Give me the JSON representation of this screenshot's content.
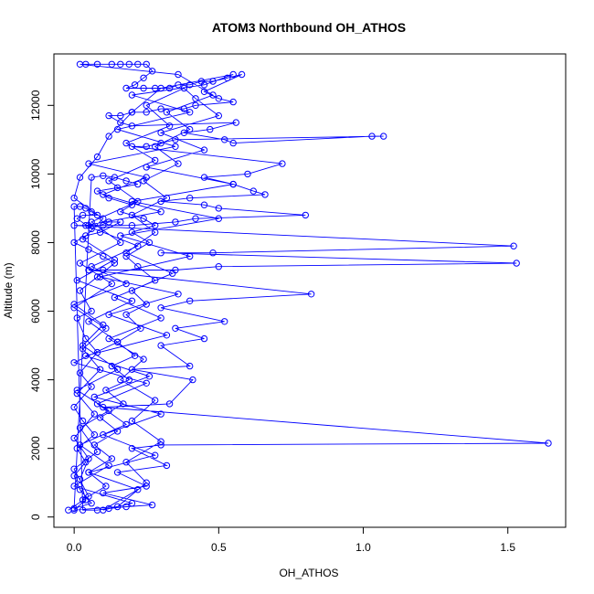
{
  "chart_data": {
    "type": "scatter",
    "title": "ATOM3 Northbound OH_ATHOS",
    "xlabel": "OH_ATHOS",
    "ylabel": "Altitude (m)",
    "xlim": [
      -0.07,
      1.7
    ],
    "ylim": [
      -300,
      13500
    ],
    "xticks": [
      0.0,
      0.5,
      1.0,
      1.5
    ],
    "xtick_labels": [
      "0.0",
      "0.5",
      "1.0",
      "1.5"
    ],
    "yticks": [
      0,
      2000,
      4000,
      6000,
      8000,
      10000,
      12000
    ],
    "ytick_labels": [
      "0",
      "2000",
      "4000",
      "6000",
      "8000",
      "10000",
      "12000"
    ],
    "grid": false,
    "connected": true,
    "marker": "open-circle",
    "colors": {
      "series": "#0000ff",
      "axes": "#000000",
      "background": "#ffffff"
    },
    "series": [
      {
        "points": [
          [
            -0.02,
            200
          ],
          [
            0.05,
            600
          ],
          [
            0.0,
            1400
          ],
          [
            0.08,
            1900
          ],
          [
            0.02,
            2600
          ],
          [
            0.12,
            3100
          ],
          [
            0.01,
            3700
          ],
          [
            0.15,
            4300
          ],
          [
            0.03,
            5000
          ],
          [
            0.1,
            5600
          ],
          [
            0.0,
            6200
          ],
          [
            0.18,
            6800
          ],
          [
            0.06,
            7300
          ],
          [
            0.22,
            7900
          ],
          [
            0.04,
            8500
          ],
          [
            0.3,
            8900
          ],
          [
            0.1,
            9400
          ],
          [
            0.25,
            9900
          ],
          [
            0.05,
            10300
          ],
          [
            0.35,
            10800
          ],
          [
            0.15,
            11300
          ],
          [
            0.4,
            11800
          ],
          [
            0.2,
            12300
          ],
          [
            0.45,
            12600
          ],
          [
            0.55,
            12900
          ],
          [
            0.3,
            12500
          ],
          [
            0.2,
            11800
          ],
          [
            0.12,
            11100
          ],
          [
            0.08,
            10500
          ],
          [
            0.02,
            9900
          ],
          [
            0.0,
            9300
          ],
          [
            0.1,
            8700
          ],
          [
            0.03,
            8100
          ],
          [
            0.14,
            7500
          ],
          [
            0.01,
            6900
          ],
          [
            0.2,
            6300
          ],
          [
            0.05,
            5700
          ],
          [
            0.15,
            5100
          ],
          [
            0.0,
            4500
          ],
          [
            0.25,
            3900
          ],
          [
            0.08,
            3300
          ],
          [
            0.18,
            2700
          ],
          [
            0.02,
            2100
          ],
          [
            0.12,
            1500
          ],
          [
            0.0,
            900
          ],
          [
            0.2,
            400
          ],
          [
            0.1,
            200
          ],
          [
            0.22,
            800
          ],
          [
            0.05,
            1300
          ],
          [
            0.28,
            1800
          ],
          [
            0.1,
            2400
          ],
          [
            0.3,
            3000
          ],
          [
            0.07,
            3500
          ],
          [
            0.26,
            4100
          ],
          [
            0.04,
            4700
          ],
          [
            0.32,
            5300
          ],
          [
            0.12,
            5900
          ],
          [
            0.36,
            6500
          ],
          [
            0.09,
            7000
          ],
          [
            0.4,
            7600
          ],
          [
            0.16,
            8200
          ],
          [
            0.5,
            8700
          ],
          [
            0.2,
            9200
          ],
          [
            0.55,
            9700
          ],
          [
            0.25,
            10200
          ],
          [
            0.45,
            10700
          ],
          [
            0.3,
            11200
          ],
          [
            0.5,
            11700
          ],
          [
            0.42,
            12200
          ],
          [
            0.38,
            12500
          ],
          [
            0.25,
            12000
          ],
          [
            0.33,
            11400
          ],
          [
            0.18,
            10900
          ],
          [
            0.28,
            10400
          ],
          [
            0.12,
            9800
          ],
          [
            0.22,
            9200
          ],
          [
            0.06,
            8600
          ],
          [
            0.16,
            8000
          ],
          [
            0.02,
            7400
          ],
          [
            0.13,
            6800
          ],
          [
            0.0,
            6100
          ],
          [
            0.11,
            5500
          ],
          [
            0.03,
            4900
          ],
          [
            0.09,
            4300
          ],
          [
            0.01,
            3600
          ],
          [
            0.07,
            3000
          ],
          [
            0.0,
            2300
          ],
          [
            0.05,
            1700
          ],
          [
            0.02,
            1100
          ],
          [
            0.04,
            500
          ],
          [
            0.0,
            200
          ],
          [
            0.15,
            300
          ],
          [
            0.25,
            1000
          ],
          [
            0.18,
            1600
          ],
          [
            0.3,
            2200
          ],
          [
            0.2,
            2800
          ],
          [
            0.28,
            3400
          ],
          [
            0.16,
            4000
          ],
          [
            0.24,
            4600
          ],
          [
            0.12,
            5200
          ],
          [
            0.3,
            5800
          ],
          [
            0.14,
            6400
          ],
          [
            0.34,
            7100
          ],
          [
            0.18,
            7700
          ],
          [
            0.28,
            8300
          ],
          [
            0.2,
            8800
          ],
          [
            0.32,
            9300
          ],
          [
            0.24,
            9800
          ],
          [
            0.36,
            10300
          ],
          [
            0.28,
            10800
          ],
          [
            0.4,
            11300
          ],
          [
            0.32,
            11800
          ],
          [
            0.48,
            12300
          ],
          [
            0.36,
            12900
          ],
          [
            0.02,
            13200
          ],
          [
            0.04,
            13200
          ],
          [
            0.08,
            13200
          ],
          [
            0.13,
            13200
          ],
          [
            0.16,
            13200
          ],
          [
            0.19,
            13200
          ],
          [
            0.22,
            13200
          ],
          [
            0.25,
            13200
          ],
          [
            0.27,
            13000
          ],
          [
            0.24,
            12800
          ],
          [
            0.21,
            12600
          ],
          [
            0.18,
            12500
          ],
          [
            0.24,
            12500
          ],
          [
            0.28,
            12500
          ],
          [
            0.33,
            12500
          ],
          [
            0.36,
            12600
          ],
          [
            0.4,
            12600
          ],
          [
            0.44,
            12700
          ],
          [
            0.48,
            12700
          ],
          [
            0.53,
            12800
          ],
          [
            0.58,
            12900
          ],
          [
            0.45,
            12400
          ],
          [
            0.5,
            12200
          ],
          [
            0.55,
            12100
          ],
          [
            0.42,
            12000
          ],
          [
            0.38,
            11900
          ],
          [
            0.3,
            11900
          ],
          [
            0.25,
            11800
          ],
          [
            0.2,
            11800
          ],
          [
            0.16,
            11700
          ],
          [
            0.12,
            11700
          ],
          [
            0.16,
            11500
          ],
          [
            0.2,
            11400
          ],
          [
            0.56,
            11500
          ],
          [
            0.47,
            11300
          ],
          [
            0.38,
            11200
          ],
          [
            0.52,
            11000
          ],
          [
            0.55,
            10900
          ],
          [
            1.03,
            11100
          ],
          [
            1.07,
            11100
          ],
          [
            0.35,
            11000
          ],
          [
            0.3,
            10900
          ],
          [
            0.25,
            10800
          ],
          [
            0.2,
            10800
          ],
          [
            0.72,
            10300
          ],
          [
            0.6,
            10000
          ],
          [
            0.45,
            9900
          ],
          [
            0.55,
            9700
          ],
          [
            0.62,
            9500
          ],
          [
            0.66,
            9400
          ],
          [
            0.4,
            9300
          ],
          [
            0.3,
            9200
          ],
          [
            0.45,
            9100
          ],
          [
            0.5,
            9000
          ],
          [
            0.8,
            8800
          ],
          [
            0.42,
            8700
          ],
          [
            0.35,
            8600
          ],
          [
            0.2,
            8500
          ],
          [
            0.1,
            8500
          ],
          [
            0.05,
            8500
          ],
          [
            0.0,
            8500
          ],
          [
            1.52,
            7900
          ],
          [
            0.48,
            7700
          ],
          [
            0.3,
            7700
          ],
          [
            1.53,
            7400
          ],
          [
            0.5,
            7300
          ],
          [
            0.35,
            7200
          ],
          [
            0.1,
            7200
          ],
          [
            0.05,
            7200
          ],
          [
            0.82,
            6500
          ],
          [
            0.4,
            6300
          ],
          [
            0.3,
            6100
          ],
          [
            0.52,
            5700
          ],
          [
            0.35,
            5500
          ],
          [
            0.45,
            5200
          ],
          [
            0.3,
            5000
          ],
          [
            0.4,
            4400
          ],
          [
            0.2,
            4300
          ],
          [
            0.41,
            4000
          ],
          [
            0.33,
            3300
          ],
          [
            0.1,
            3200
          ],
          [
            1.64,
            2150
          ],
          [
            0.3,
            2100
          ],
          [
            0.2,
            2000
          ],
          [
            0.32,
            1500
          ],
          [
            0.15,
            1300
          ],
          [
            0.25,
            900
          ],
          [
            0.1,
            700
          ],
          [
            0.27,
            350
          ],
          [
            0.18,
            300
          ],
          [
            0.12,
            250
          ],
          [
            0.08,
            200
          ],
          [
            0.03,
            200
          ],
          [
            0.0,
            9050
          ],
          [
            0.02,
            9050
          ],
          [
            0.04,
            9000
          ],
          [
            0.06,
            8900
          ],
          [
            0.08,
            8800
          ],
          [
            0.03,
            8800
          ],
          [
            0.01,
            8700
          ],
          [
            0.06,
            8400
          ],
          [
            0.12,
            8600
          ],
          [
            0.16,
            8600
          ],
          [
            0.09,
            8300
          ],
          [
            0.04,
            8200
          ],
          [
            0.0,
            8000
          ],
          [
            0.05,
            7800
          ],
          [
            0.1,
            7600
          ],
          [
            0.14,
            7400
          ],
          [
            0.08,
            7000
          ],
          [
            0.02,
            6600
          ],
          [
            0.06,
            6000
          ],
          [
            0.01,
            5800
          ],
          [
            0.04,
            5200
          ],
          [
            0.08,
            4800
          ],
          [
            0.02,
            4200
          ],
          [
            0.06,
            3800
          ],
          [
            0.0,
            3200
          ],
          [
            0.03,
            2800
          ],
          [
            0.07,
            2400
          ],
          [
            0.01,
            2000
          ],
          [
            0.04,
            1600
          ],
          [
            0.0,
            1200
          ],
          [
            0.02,
            800
          ],
          [
            0.06,
            400
          ],
          [
            0.0,
            250
          ],
          [
            0.06,
            9900
          ],
          [
            0.1,
            9950
          ],
          [
            0.14,
            9900
          ],
          [
            0.18,
            9800
          ],
          [
            0.22,
            9700
          ],
          [
            0.15,
            9600
          ],
          [
            0.08,
            9500
          ],
          [
            0.12,
            9300
          ],
          [
            0.2,
            9100
          ],
          [
            0.16,
            8900
          ],
          [
            0.24,
            8700
          ],
          [
            0.28,
            8500
          ],
          [
            0.2,
            8300
          ],
          [
            0.26,
            8000
          ],
          [
            0.18,
            7600
          ],
          [
            0.22,
            7300
          ],
          [
            0.28,
            6900
          ],
          [
            0.2,
            6600
          ],
          [
            0.25,
            6200
          ],
          [
            0.18,
            5900
          ],
          [
            0.23,
            5500
          ],
          [
            0.15,
            5100
          ],
          [
            0.21,
            4700
          ],
          [
            0.13,
            4400
          ],
          [
            0.19,
            4000
          ],
          [
            0.11,
            3700
          ],
          [
            0.17,
            3300
          ],
          [
            0.09,
            2900
          ],
          [
            0.15,
            2500
          ],
          [
            0.07,
            2100
          ],
          [
            0.13,
            1700
          ],
          [
            0.05,
            1300
          ],
          [
            0.11,
            900
          ],
          [
            0.03,
            500
          ]
        ]
      }
    ]
  }
}
